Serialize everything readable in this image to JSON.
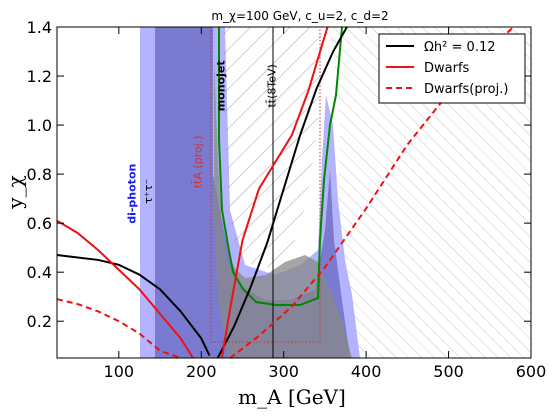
{
  "chart_data": {
    "type": "line",
    "title": "m_χ=100 GeV, c_u=2, c_d=2",
    "xlabel": "m_A [GeV]",
    "ylabel": "y_χ",
    "xlim": [
      25,
      600
    ],
    "ylim": [
      0.05,
      1.4
    ],
    "xticks": [
      100,
      200,
      300,
      400,
      500,
      600
    ],
    "yticks": [
      0.2,
      0.4,
      0.6,
      0.8,
      1.0,
      1.2,
      1.4
    ],
    "xtick_labels": [
      "100",
      "200",
      "300",
      "400",
      "500",
      "600"
    ],
    "ytick_labels": [
      "0.2",
      "0.4",
      "0.6",
      "0.8",
      "1.0",
      "1.2",
      "1.4"
    ],
    "grid": false,
    "legend_position": "top-right",
    "legend": [
      {
        "label": "Ωh² = 0.12",
        "color": "#000000",
        "style": "solid"
      },
      {
        "label": "Dwarfs",
        "color": "#ee1111",
        "style": "solid"
      },
      {
        "label": "Dwarfs(proj.)",
        "color": "#ee1111",
        "style": "dashed"
      }
    ],
    "series": [
      {
        "name": "Ωh² = 0.12",
        "color": "#000000",
        "dash": "",
        "x": [
          25,
          50,
          75,
          100,
          125,
          150,
          175,
          200,
          210
        ],
        "y": [
          0.47,
          0.46,
          0.45,
          0.43,
          0.39,
          0.33,
          0.24,
          0.13,
          0.06
        ]
      },
      {
        "name": "Ωh² = 0.12",
        "color": "#000000",
        "dash": "",
        "x": [
          220,
          240,
          260,
          280,
          300,
          320,
          340,
          360,
          380
        ],
        "y": [
          0.05,
          0.18,
          0.34,
          0.52,
          0.74,
          0.96,
          1.15,
          1.3,
          1.42
        ]
      },
      {
        "name": "Dwarfs",
        "color": "#ee1111",
        "dash": "",
        "x": [
          25,
          50,
          75,
          100,
          125,
          150,
          175,
          190
        ],
        "y": [
          0.61,
          0.56,
          0.49,
          0.41,
          0.33,
          0.23,
          0.13,
          0.05
        ]
      },
      {
        "name": "Dwarfs",
        "color": "#ee1111",
        "dash": "",
        "x": [
          225,
          235,
          250,
          270,
          290,
          310,
          330,
          345,
          355
        ],
        "y": [
          0.05,
          0.25,
          0.53,
          0.74,
          0.85,
          0.96,
          1.14,
          1.31,
          1.42
        ]
      },
      {
        "name": "Dwarfs(proj.)",
        "color": "#ee1111",
        "dash": "6,4",
        "x": [
          25,
          50,
          75,
          100,
          125,
          150,
          175
        ],
        "y": [
          0.29,
          0.27,
          0.24,
          0.2,
          0.15,
          0.08,
          0.05
        ]
      },
      {
        "name": "Dwarfs(proj.)",
        "color": "#ee1111",
        "dash": "6,4",
        "x": [
          235,
          270,
          310,
          350,
          400,
          450,
          500,
          550,
          585
        ],
        "y": [
          0.05,
          0.14,
          0.26,
          0.42,
          0.66,
          0.92,
          1.13,
          1.31,
          1.42
        ]
      }
    ],
    "regions": [
      {
        "name": "di-photon band",
        "color": "#b3b3ff",
        "x": [
          112,
          130
        ]
      },
      {
        "name": "ττ band",
        "color": "#7a7ad0",
        "x": [
          130,
          210
        ]
      }
    ],
    "annotations": [
      {
        "text": "di-photon",
        "x": 120,
        "y": 0.72,
        "color": "#1a1aff",
        "rotate": -90,
        "bold": true
      },
      {
        "text": "τ⁺τ⁻",
        "x": 140,
        "y": 0.73,
        "color": "#000000",
        "rotate": -90,
        "bold": false
      },
      {
        "text": "tt̄A (proj.)",
        "x": 200,
        "y": 0.85,
        "color": "#cc3333",
        "rotate": -90,
        "bold": false
      },
      {
        "text": "monojet",
        "x": 228,
        "y": 1.16,
        "color": "#000000",
        "rotate": -90,
        "bold": true
      },
      {
        "text": "tt̄(8TeV)",
        "x": 290,
        "y": 1.16,
        "color": "#000000",
        "rotate": -90,
        "bold": false
      }
    ]
  }
}
